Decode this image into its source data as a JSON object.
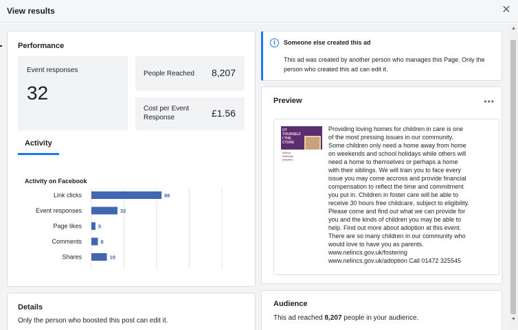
{
  "dialog": {
    "title": "View results",
    "close_icon": "close-icon"
  },
  "performance": {
    "title": "Performance",
    "event_responses_label": "Event responses",
    "event_responses_value": "32",
    "people_reached_label": "People Reached",
    "people_reached_value": "8,207",
    "cost_label_line1": "Cost per Event",
    "cost_label_line2": "Response",
    "cost_value": "£1.56",
    "tab_label": "Activity",
    "activity_subtitle": "Activity on Facebook"
  },
  "chart_data": {
    "type": "bar",
    "orientation": "horizontal",
    "categories": [
      "Link clicks",
      "Event responses",
      "Page likes",
      "Comments",
      "Shares"
    ],
    "values": [
      86,
      32,
      5,
      8,
      19
    ],
    "xlim": [
      0,
      160
    ],
    "bar_color": "#4267b2"
  },
  "info_banner": {
    "title": "Someone else created this ad",
    "text": "This ad was created by another person who manages this Page. Only the person who created this ad can edit it.",
    "icon": "info-icon"
  },
  "preview": {
    "title": "Preview",
    "more_icon": "more-icon",
    "ad_text": "Providing loving homes for children in care is one\nof the most pressing issues in our community.\nSome children only need a home away from home\non weekends and school holidays while others will\nneed a home to themselves or perhaps a home\nwith their siblings. We will train you to face every\nissue you may come accross and provide financial\ncompensation to reflect the time and commitment\nyou put in. Children in foster care will be able to\nreceive 30 hours free childcare, subject to eligibility.\nPlease come and find out what we can provide for\nyou and the kinds of children you may be able to\nhelp. Find out more about adoption at this event.\nThere are so many children in our community who\nwould love to have you as parents.\nwww.nelincs.gov.uk/fostering\nwww.nelincs.gov.uk/adoption Call 01472 325545",
    "thumb_text": "UT\nYOURSELF\nI THE\nCTURE",
    "thumb_strip_text": "nelincs\nfostering\nadoption"
  },
  "details": {
    "title": "Details",
    "text": "Only the person who boosted this post can edit it."
  },
  "audience": {
    "title": "Audience",
    "text_prefix": "This ad reached ",
    "reached_value": "8,207",
    "text_suffix": " people in your audience."
  }
}
